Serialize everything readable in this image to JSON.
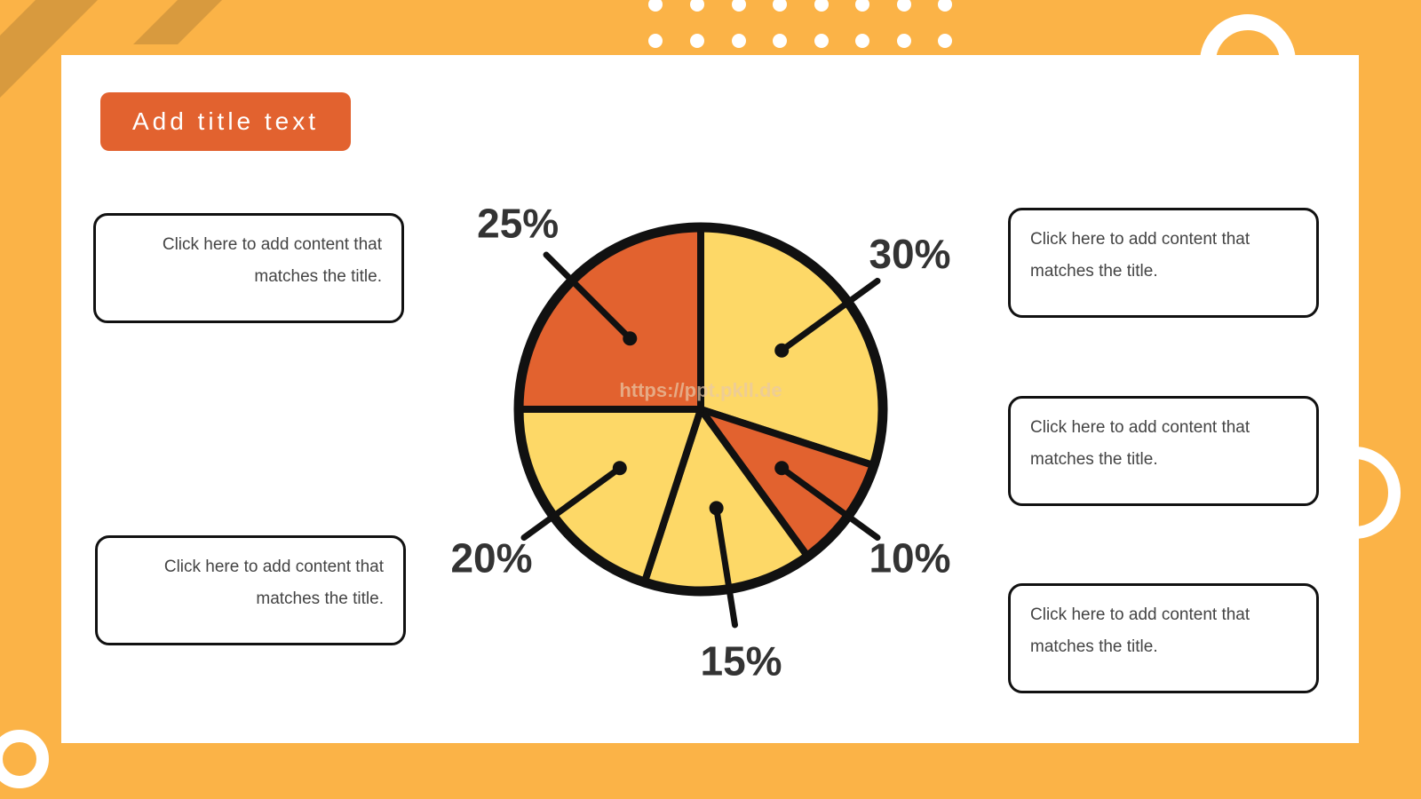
{
  "title": "Add title text",
  "watermark": "https://ppt.pkll.de",
  "text_boxes": [
    "Click here to add content that matches the title.",
    "Click here to add content that matches the title.",
    "Click here to add content that matches the title.",
    "Click here to add content that matches the title.",
    "Click here to add content that matches the title."
  ],
  "chart_data": {
    "type": "pie",
    "values": [
      30,
      10,
      15,
      20,
      25
    ],
    "value_labels": [
      "30%",
      "10%",
      "15%",
      "20%",
      "25%"
    ],
    "colors": [
      "#fdd867",
      "#e2622f",
      "#fdd867",
      "#fdd867",
      "#e2622f"
    ]
  }
}
